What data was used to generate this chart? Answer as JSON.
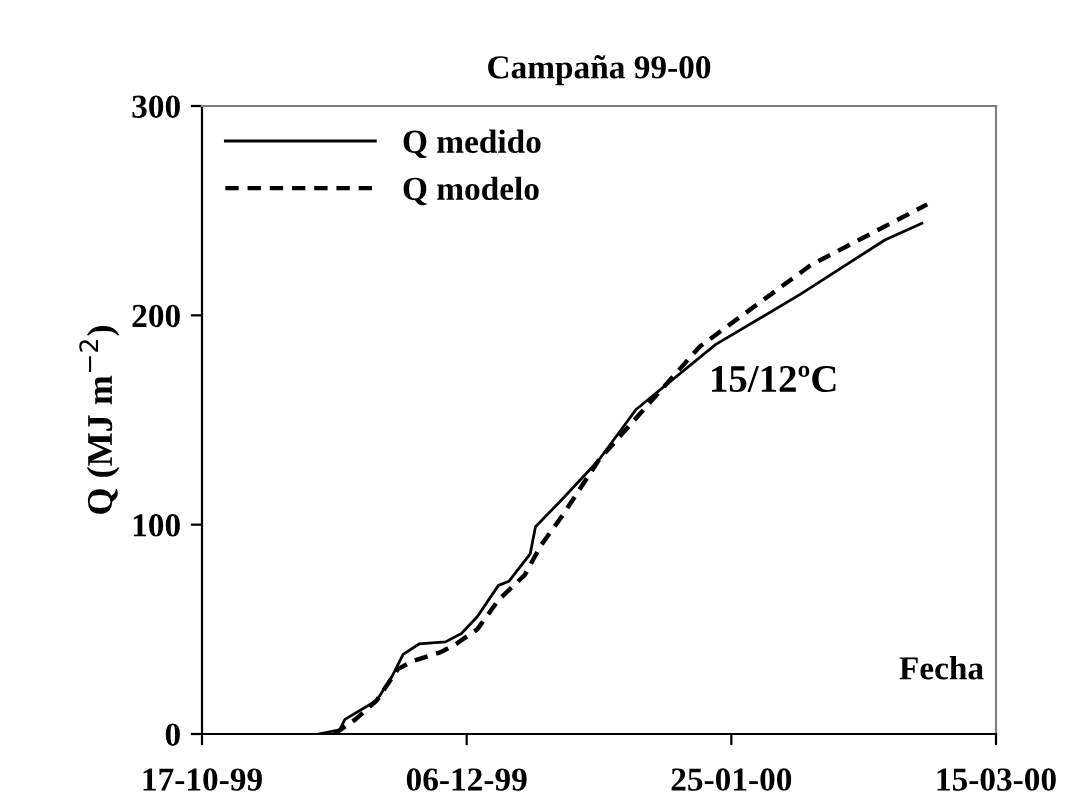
{
  "chart_data": {
    "type": "line",
    "title": "Campaña 99-00",
    "xlabel": "Fecha",
    "ylabel": "Q (MJ m$^{−2}$)",
    "annotations": [
      "15/12ºC"
    ],
    "xlim": [
      "1999-10-17",
      "2000-03-15"
    ],
    "xticks": [
      {
        "value": "1999-10-17",
        "label": "17-10-99"
      },
      {
        "value": "1999-12-06",
        "label": "06-12-99"
      },
      {
        "value": "2000-01-25",
        "label": "25-01-00"
      },
      {
        "value": "2000-03-15",
        "label": "15-03-00"
      }
    ],
    "ylim": [
      0,
      300
    ],
    "yticks": [
      0,
      100,
      200,
      300
    ],
    "grid": false,
    "legend": "top left",
    "marker": "none",
    "series": [
      {
        "name": "Q medido",
        "color": "#000000",
        "line_style": "solid",
        "x": [
          "1999-11-08",
          "1999-11-12",
          "1999-11-13",
          "1999-11-19",
          "1999-11-22",
          "1999-11-24",
          "1999-11-27",
          "1999-12-02",
          "1999-12-05",
          "1999-12-08",
          "1999-12-12",
          "1999-12-14",
          "1999-12-18",
          "1999-12-19",
          "1999-12-24",
          "1999-12-31",
          "2000-01-07",
          "2000-01-22",
          "2000-02-07",
          "2000-02-23",
          "2000-03-01"
        ],
        "values": [
          0,
          2,
          7,
          16,
          28,
          38,
          43,
          44,
          48,
          56,
          71,
          73,
          86,
          99,
          112,
          131,
          155,
          186,
          210,
          236,
          244
        ]
      },
      {
        "name": "Q modelo",
        "color": "#000000",
        "line_style": "dashed",
        "x": [
          "1999-11-11",
          "1999-11-15",
          "1999-11-19",
          "1999-11-23",
          "1999-11-26",
          "1999-12-01",
          "1999-12-04",
          "1999-12-08",
          "1999-12-12",
          "1999-12-17",
          "1999-12-20",
          "1999-12-24",
          "1999-12-31",
          "2000-01-19",
          "2000-02-09",
          "2000-03-02"
        ],
        "values": [
          0,
          7,
          16,
          31,
          35,
          39,
          43,
          50,
          64,
          76,
          90,
          104,
          131,
          185,
          224,
          253
        ]
      }
    ]
  }
}
